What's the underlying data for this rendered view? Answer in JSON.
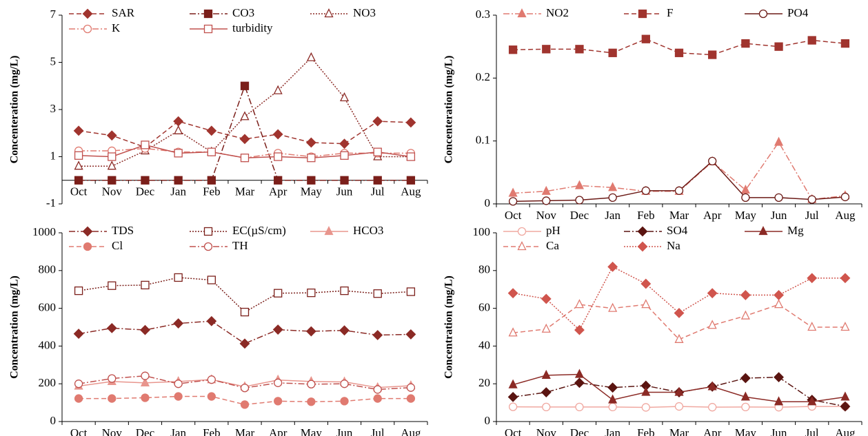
{
  "chart_data": [
    {
      "type": "line",
      "y_label": "Concenteration (mg/L)",
      "categories": [
        "Oct",
        "Nov",
        "Dec",
        "Jan",
        "Feb",
        "Mar",
        "Apr",
        "May",
        "Jun",
        "Jul",
        "Aug"
      ],
      "ylim": [
        -1,
        7
      ],
      "yticks": [
        -1,
        1,
        3,
        5,
        7
      ],
      "series": [
        {
          "name": "SAR",
          "color": "#a0342e",
          "line_style": "dashed",
          "marker": "diamond",
          "filled": true,
          "values": [
            2.1,
            1.9,
            1.4,
            2.5,
            2.1,
            1.75,
            1.95,
            1.6,
            1.55,
            2.5,
            2.45
          ]
        },
        {
          "name": "CO3",
          "color": "#7b1f1a",
          "line_style": "dashdot",
          "marker": "square",
          "filled": true,
          "values": [
            0,
            0,
            0,
            0,
            0,
            4,
            0,
            0,
            0,
            0,
            0
          ]
        },
        {
          "name": "NO3",
          "color": "#8b2a25",
          "line_style": "dotted",
          "marker": "triangle",
          "filled": false,
          "values": [
            0.6,
            0.6,
            1.25,
            2.1,
            1.2,
            2.7,
            3.8,
            5.2,
            3.5,
            1.0,
            1.0
          ]
        },
        {
          "name": "K",
          "color": "#e07a70",
          "line_style": "dashdot",
          "marker": "circle",
          "filled": false,
          "values": [
            1.25,
            1.25,
            1.35,
            1.2,
            1.2,
            0.95,
            1.15,
            1.0,
            1.15,
            1.15,
            1.15
          ]
        },
        {
          "name": "turbidity",
          "color": "#c0504d",
          "line_style": "solid",
          "marker": "square",
          "filled": false,
          "values": [
            1.05,
            1.0,
            1.5,
            1.15,
            1.2,
            0.95,
            1.0,
            0.95,
            1.05,
            1.2,
            1.0
          ]
        }
      ]
    },
    {
      "type": "line",
      "y_label": "Concenteration (mg/L)",
      "categories": [
        "Oct",
        "Nov",
        "Dec",
        "Jan",
        "Feb",
        "Mar",
        "Apr",
        "May",
        "Jun",
        "Jul",
        "Aug"
      ],
      "ylim": [
        0,
        0.3
      ],
      "yticks": [
        0,
        0.1,
        0.2,
        0.3
      ],
      "series": [
        {
          "name": "NO2",
          "color": "#e07a70",
          "line_style": "dashdot",
          "marker": "triangle",
          "filled": true,
          "values": [
            0.017,
            0.02,
            0.029,
            0.026,
            0.02,
            0.02,
            0.067,
            0.022,
            0.098,
            0.007,
            0.013
          ]
        },
        {
          "name": "F",
          "color": "#a0342e",
          "line_style": "dashed",
          "marker": "square",
          "filled": true,
          "values": [
            0.245,
            0.246,
            0.246,
            0.24,
            0.262,
            0.24,
            0.237,
            0.255,
            0.25,
            0.26,
            0.255
          ]
        },
        {
          "name": "PO4",
          "color": "#6b1a16",
          "line_style": "solid",
          "marker": "circle",
          "filled": false,
          "values": [
            0.004,
            0.005,
            0.006,
            0.01,
            0.021,
            0.021,
            0.068,
            0.01,
            0.01,
            0.007,
            0.011
          ]
        }
      ]
    },
    {
      "type": "line",
      "y_label": "Concentration (mg/L)",
      "categories": [
        "Oct",
        "Nov",
        "Dec",
        "Jan",
        "Feb",
        "Mar",
        "Apr",
        "May",
        "Jun",
        "Jul",
        "Aug"
      ],
      "ylim": [
        0,
        1000
      ],
      "yticks": [
        0,
        200,
        400,
        600,
        800,
        1000
      ],
      "series": [
        {
          "name": "TDS",
          "color": "#8b2a25",
          "line_style": "dashdot",
          "marker": "diamond",
          "filled": true,
          "values": [
            465,
            495,
            485,
            520,
            532,
            413,
            487,
            478,
            483,
            458,
            462
          ]
        },
        {
          "name": "EC(µS/cm)",
          "color": "#7b1f1a",
          "line_style": "dotted",
          "marker": "square",
          "filled": false,
          "values": [
            693,
            720,
            723,
            763,
            750,
            580,
            680,
            682,
            693,
            678,
            688
          ]
        },
        {
          "name": "HCO3",
          "color": "#e8958d",
          "line_style": "solid",
          "marker": "triangle",
          "filled": true,
          "values": [
            188,
            212,
            205,
            212,
            222,
            185,
            220,
            212,
            210,
            180,
            190
          ]
        },
        {
          "name": "Cl",
          "color": "#e07a70",
          "line_style": "dashed",
          "marker": "circle",
          "filled": true,
          "values": [
            122,
            122,
            126,
            133,
            133,
            90,
            108,
            105,
            108,
            122,
            122
          ]
        },
        {
          "name": "TH",
          "color": "#c0504d",
          "line_style": "dashdot",
          "marker": "circle",
          "filled": false,
          "values": [
            200,
            228,
            242,
            200,
            222,
            178,
            205,
            198,
            200,
            170,
            180
          ]
        }
      ]
    },
    {
      "type": "line",
      "y_label": "Concentration (mg/L)",
      "categories": [
        "Oct",
        "Nov",
        "Dec",
        "Jan",
        "Feb",
        "Mar",
        "Apr",
        "May",
        "Jun",
        "Jul",
        "Aug"
      ],
      "ylim": [
        0,
        100
      ],
      "yticks": [
        0,
        20,
        40,
        60,
        80,
        100
      ],
      "series": [
        {
          "name": "pH",
          "color": "#f0a8a0",
          "line_style": "solid",
          "marker": "circle",
          "filled": false,
          "values": [
            7.8,
            7.7,
            7.7,
            7.7,
            7.5,
            8,
            7.6,
            7.7,
            7.6,
            8,
            8
          ]
        },
        {
          "name": "SO4",
          "color": "#5a1410",
          "line_style": "dashdot",
          "marker": "diamond",
          "filled": true,
          "values": [
            13,
            15.5,
            20.5,
            18,
            19,
            15.5,
            18.5,
            23,
            23.5,
            11.5,
            8
          ]
        },
        {
          "name": "Mg",
          "color": "#8b2a25",
          "line_style": "solid",
          "marker": "triangle",
          "filled": true,
          "values": [
            19.5,
            24.5,
            25,
            11.5,
            15.5,
            15.5,
            18.5,
            13,
            10.5,
            10.5,
            13
          ]
        },
        {
          "name": "Ca",
          "color": "#e07a70",
          "line_style": "dashed",
          "marker": "triangle",
          "filled": false,
          "values": [
            47,
            49,
            62,
            60,
            62,
            43.5,
            51,
            56,
            62,
            50,
            50
          ]
        },
        {
          "name": "Na",
          "color": "#d0554d",
          "line_style": "dotted",
          "marker": "diamond",
          "filled": true,
          "values": [
            68,
            65,
            48.5,
            82,
            73,
            57.5,
            68,
            67,
            67,
            76,
            76
          ]
        }
      ]
    }
  ]
}
